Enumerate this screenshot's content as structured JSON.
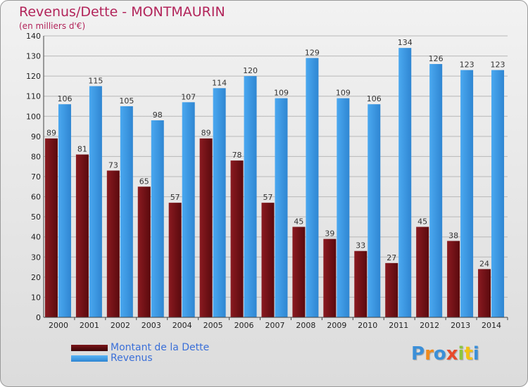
{
  "chart_data": {
    "type": "bar",
    "title": "Revenus/Dette - MONTMAURIN",
    "subtitle": "(en milliers d'€)",
    "categories": [
      "2000",
      "2001",
      "2002",
      "2003",
      "2004",
      "2005",
      "2006",
      "2007",
      "2008",
      "2009",
      "2010",
      "2011",
      "2012",
      "2013",
      "2014"
    ],
    "series": [
      {
        "name": "Montant de la Dette",
        "color": "#6b0f14",
        "values": [
          89,
          81,
          73,
          65,
          57,
          89,
          78,
          57,
          45,
          39,
          33,
          27,
          45,
          38,
          24
        ]
      },
      {
        "name": "Revenus",
        "color": "#3d9be6",
        "values": [
          106,
          115,
          105,
          98,
          107,
          114,
          120,
          109,
          129,
          109,
          106,
          134,
          126,
          123,
          123
        ]
      }
    ],
    "ylim": [
      0,
      140
    ],
    "yticks": [
      0,
      10,
      20,
      30,
      40,
      50,
      60,
      70,
      80,
      90,
      100,
      110,
      120,
      130,
      140
    ],
    "grid": true,
    "legend": "bottom-left"
  },
  "logo": {
    "text": "Proxiti",
    "letter_colors": [
      "#3b8fd8",
      "#f08a1c",
      "#3b8fd8",
      "#e84a2b",
      "#8cc63f",
      "#f2c20f",
      "#3b8fd8"
    ]
  }
}
